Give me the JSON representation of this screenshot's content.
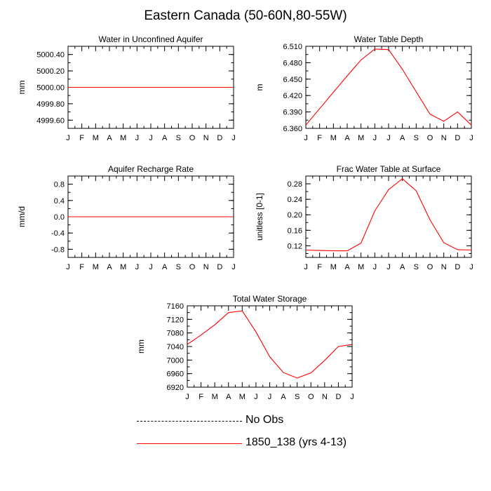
{
  "figure": {
    "title": "Eastern Canada (50-60N,80-55W)"
  },
  "colors": {
    "model_line": "#ff0000",
    "obs_line": "#000000",
    "axis": "#000000"
  },
  "legend": {
    "position": "bottom-center",
    "entries": [
      {
        "label": "No Obs",
        "style": "dashed",
        "color": "#000000"
      },
      {
        "label": "1850_138 (yrs 4-13)",
        "style": "solid",
        "color": "#ff0000"
      }
    ]
  },
  "chart_data": [
    {
      "type": "line",
      "title": "Water in Unconfined Aquifer",
      "xlabel": "",
      "ylabel": "mm",
      "categories": [
        "J",
        "F",
        "M",
        "A",
        "M",
        "J",
        "J",
        "A",
        "S",
        "O",
        "N",
        "D",
        "J"
      ],
      "ylim": [
        4999.5,
        5000.5
      ],
      "yticks": [
        4999.6,
        4999.8,
        5000.0,
        5000.2,
        5000.4
      ],
      "ytick_labels": [
        "4999.60",
        "4999.80",
        "5000.00",
        "5000.20",
        "5000.40"
      ],
      "series": [
        {
          "values": [
            5000,
            5000,
            5000,
            5000,
            5000,
            5000,
            5000,
            5000,
            5000,
            5000,
            5000,
            5000,
            5000
          ]
        }
      ]
    },
    {
      "type": "line",
      "title": "Water Table Depth",
      "xlabel": "",
      "ylabel": "m",
      "categories": [
        "J",
        "F",
        "M",
        "A",
        "M",
        "J",
        "J",
        "A",
        "S",
        "O",
        "N",
        "D",
        "J"
      ],
      "ylim": [
        6.36,
        6.51
      ],
      "yticks": [
        6.36,
        6.39,
        6.42,
        6.45,
        6.48,
        6.51
      ],
      "ytick_labels": [
        "6.360",
        "6.390",
        "6.420",
        "6.450",
        "6.480",
        "6.510"
      ],
      "series": [
        {
          "values": [
            6.366,
            6.396,
            6.426,
            6.456,
            6.485,
            6.505,
            6.504,
            6.468,
            6.427,
            6.386,
            6.373,
            6.39,
            6.366
          ]
        }
      ]
    },
    {
      "type": "line",
      "title": "Aquifer Recharge Rate",
      "xlabel": "",
      "ylabel": "mm/d",
      "categories": [
        "J",
        "F",
        "M",
        "A",
        "M",
        "J",
        "J",
        "A",
        "S",
        "O",
        "N",
        "D",
        "J"
      ],
      "ylim": [
        -1.0,
        1.0
      ],
      "yticks": [
        -0.8,
        -0.4,
        0.0,
        0.4,
        0.8
      ],
      "ytick_labels": [
        "-0.8",
        "-0.4",
        "0.0",
        "0.4",
        "0.8"
      ],
      "series": [
        {
          "values": [
            0,
            0,
            0,
            0,
            0,
            0,
            0,
            0,
            0,
            0,
            0,
            0,
            0
          ]
        }
      ]
    },
    {
      "type": "line",
      "title": "Frac Water Table at Surface",
      "xlabel": "",
      "ylabel": "unitless [0-1]",
      "categories": [
        "J",
        "F",
        "M",
        "A",
        "M",
        "J",
        "J",
        "A",
        "S",
        "O",
        "N",
        "D",
        "J"
      ],
      "ylim": [
        0.09,
        0.3
      ],
      "yticks": [
        0.12,
        0.16,
        0.2,
        0.24,
        0.28
      ],
      "ytick_labels": [
        "0.12",
        "0.16",
        "0.20",
        "0.24",
        "0.28"
      ],
      "series": [
        {
          "values": [
            0.109,
            0.108,
            0.107,
            0.107,
            0.127,
            0.21,
            0.265,
            0.293,
            0.262,
            0.187,
            0.128,
            0.11,
            0.109
          ]
        }
      ]
    },
    {
      "type": "line",
      "title": "Total Water Storage",
      "xlabel": "",
      "ylabel": "mm",
      "categories": [
        "J",
        "F",
        "M",
        "A",
        "M",
        "J",
        "J",
        "A",
        "S",
        "O",
        "N",
        "D",
        "J"
      ],
      "ylim": [
        6920,
        7160
      ],
      "yticks": [
        6920,
        6960,
        7000,
        7040,
        7080,
        7120,
        7160
      ],
      "ytick_labels": [
        "6920",
        "6960",
        "7000",
        "7040",
        "7080",
        "7120",
        "7160"
      ],
      "series": [
        {
          "values": [
            7046,
            7074,
            7104,
            7140,
            7145,
            7083,
            7010,
            6963,
            6947,
            6962,
            6999,
            7040,
            7046
          ]
        }
      ]
    }
  ]
}
